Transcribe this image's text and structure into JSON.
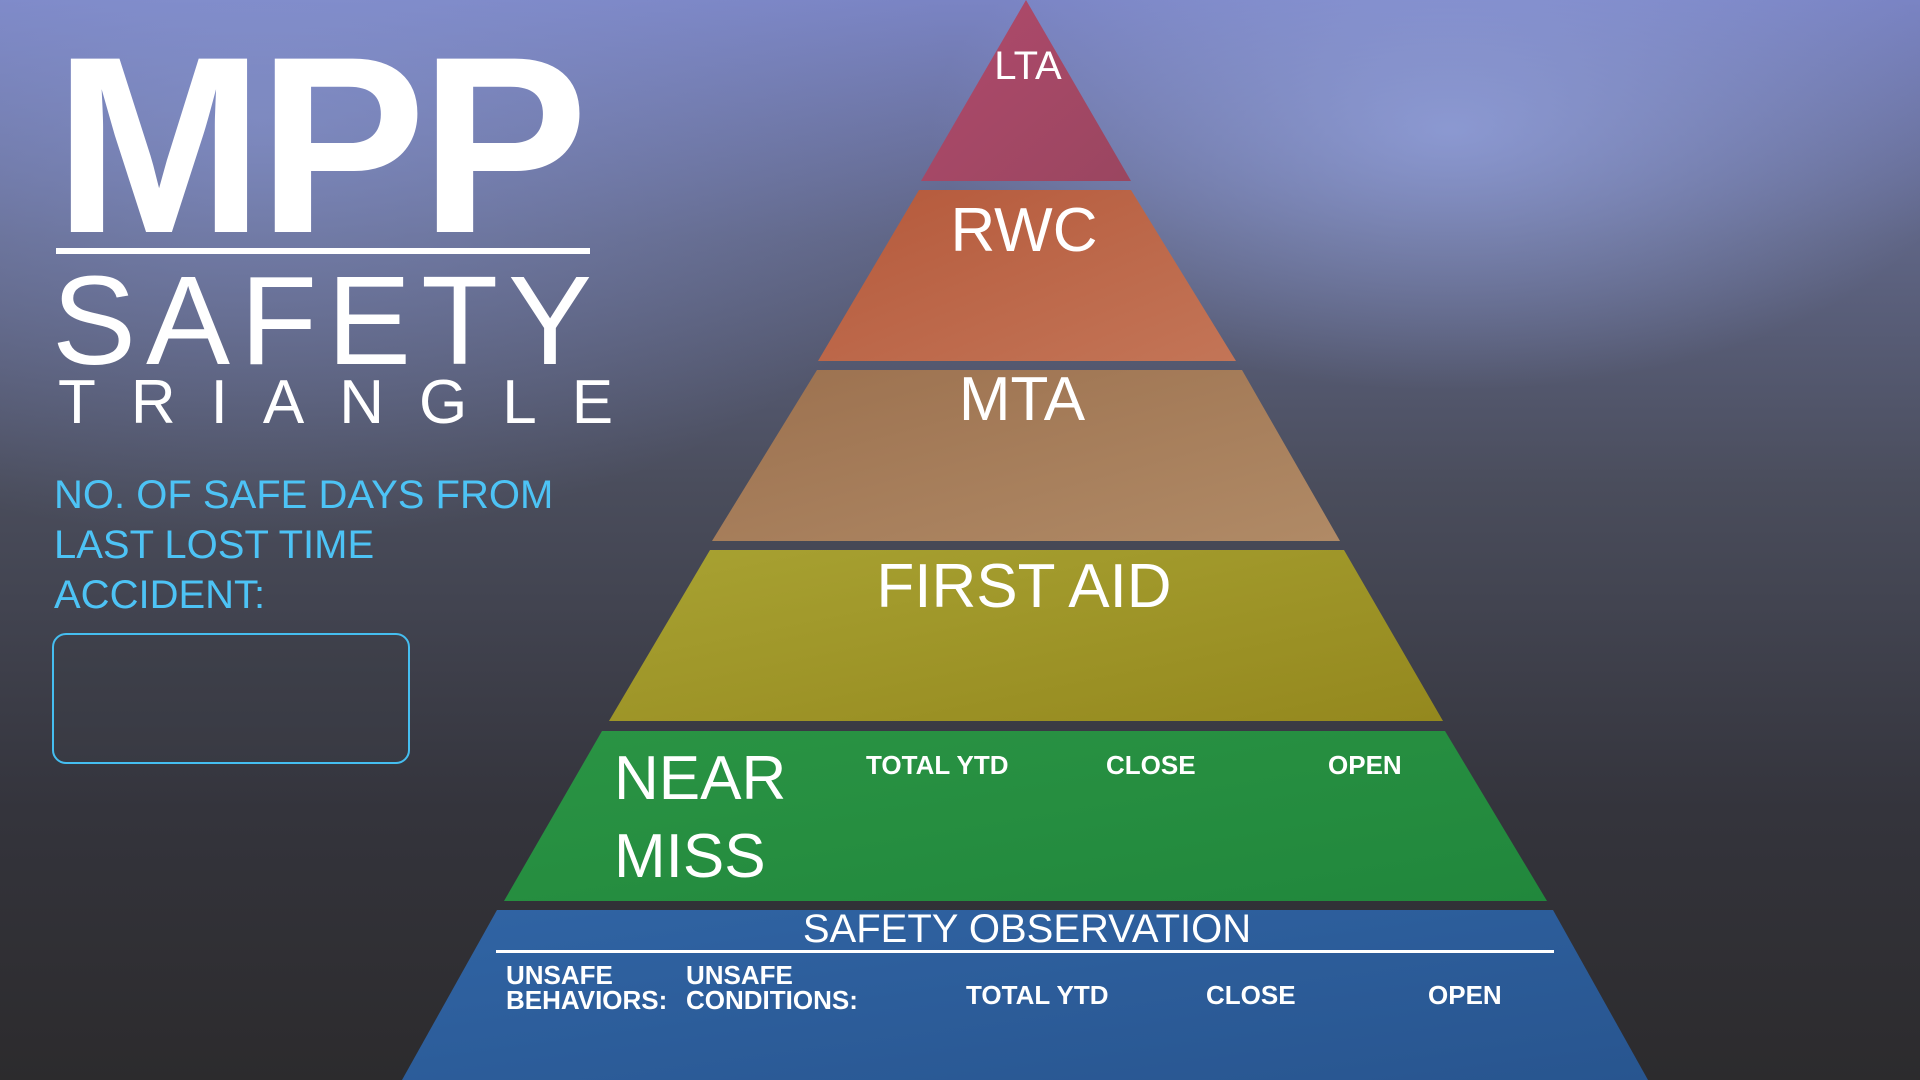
{
  "brand": {
    "title": "MPP",
    "subtitle": "SAFETY",
    "subtitle2": "TRIANGLE"
  },
  "safe_days": {
    "label": "NO. OF SAFE DAYS FROM LAST LOST TIME ACCIDENT:",
    "value": ""
  },
  "pyramid": {
    "tiers": [
      {
        "label": "LTA",
        "color": "#a54865"
      },
      {
        "label": "RWC",
        "color": "#b86448"
      },
      {
        "label": "MTA",
        "color": "#a47a58"
      },
      {
        "label": "FIRST AID",
        "color": "#a49a2c"
      },
      {
        "label": "NEAR MISS",
        "color": "#2a8e40"
      },
      {
        "label": "SAFETY OBSERVATION",
        "color": "#2e5f9e"
      }
    ],
    "near_miss": {
      "total_ytd": "TOTAL YTD",
      "close": "CLOSE",
      "open": "OPEN"
    },
    "safety_observation": {
      "unsafe_behaviors": "UNSAFE BEHAVIORS:",
      "unsafe_conditions": "UNSAFE CONDITIONS:",
      "total_ytd": "TOTAL YTD",
      "close": "CLOSE",
      "open": "OPEN"
    }
  },
  "colors": {
    "accent_label": "#4dc3f5",
    "box_border": "#45bef0"
  }
}
